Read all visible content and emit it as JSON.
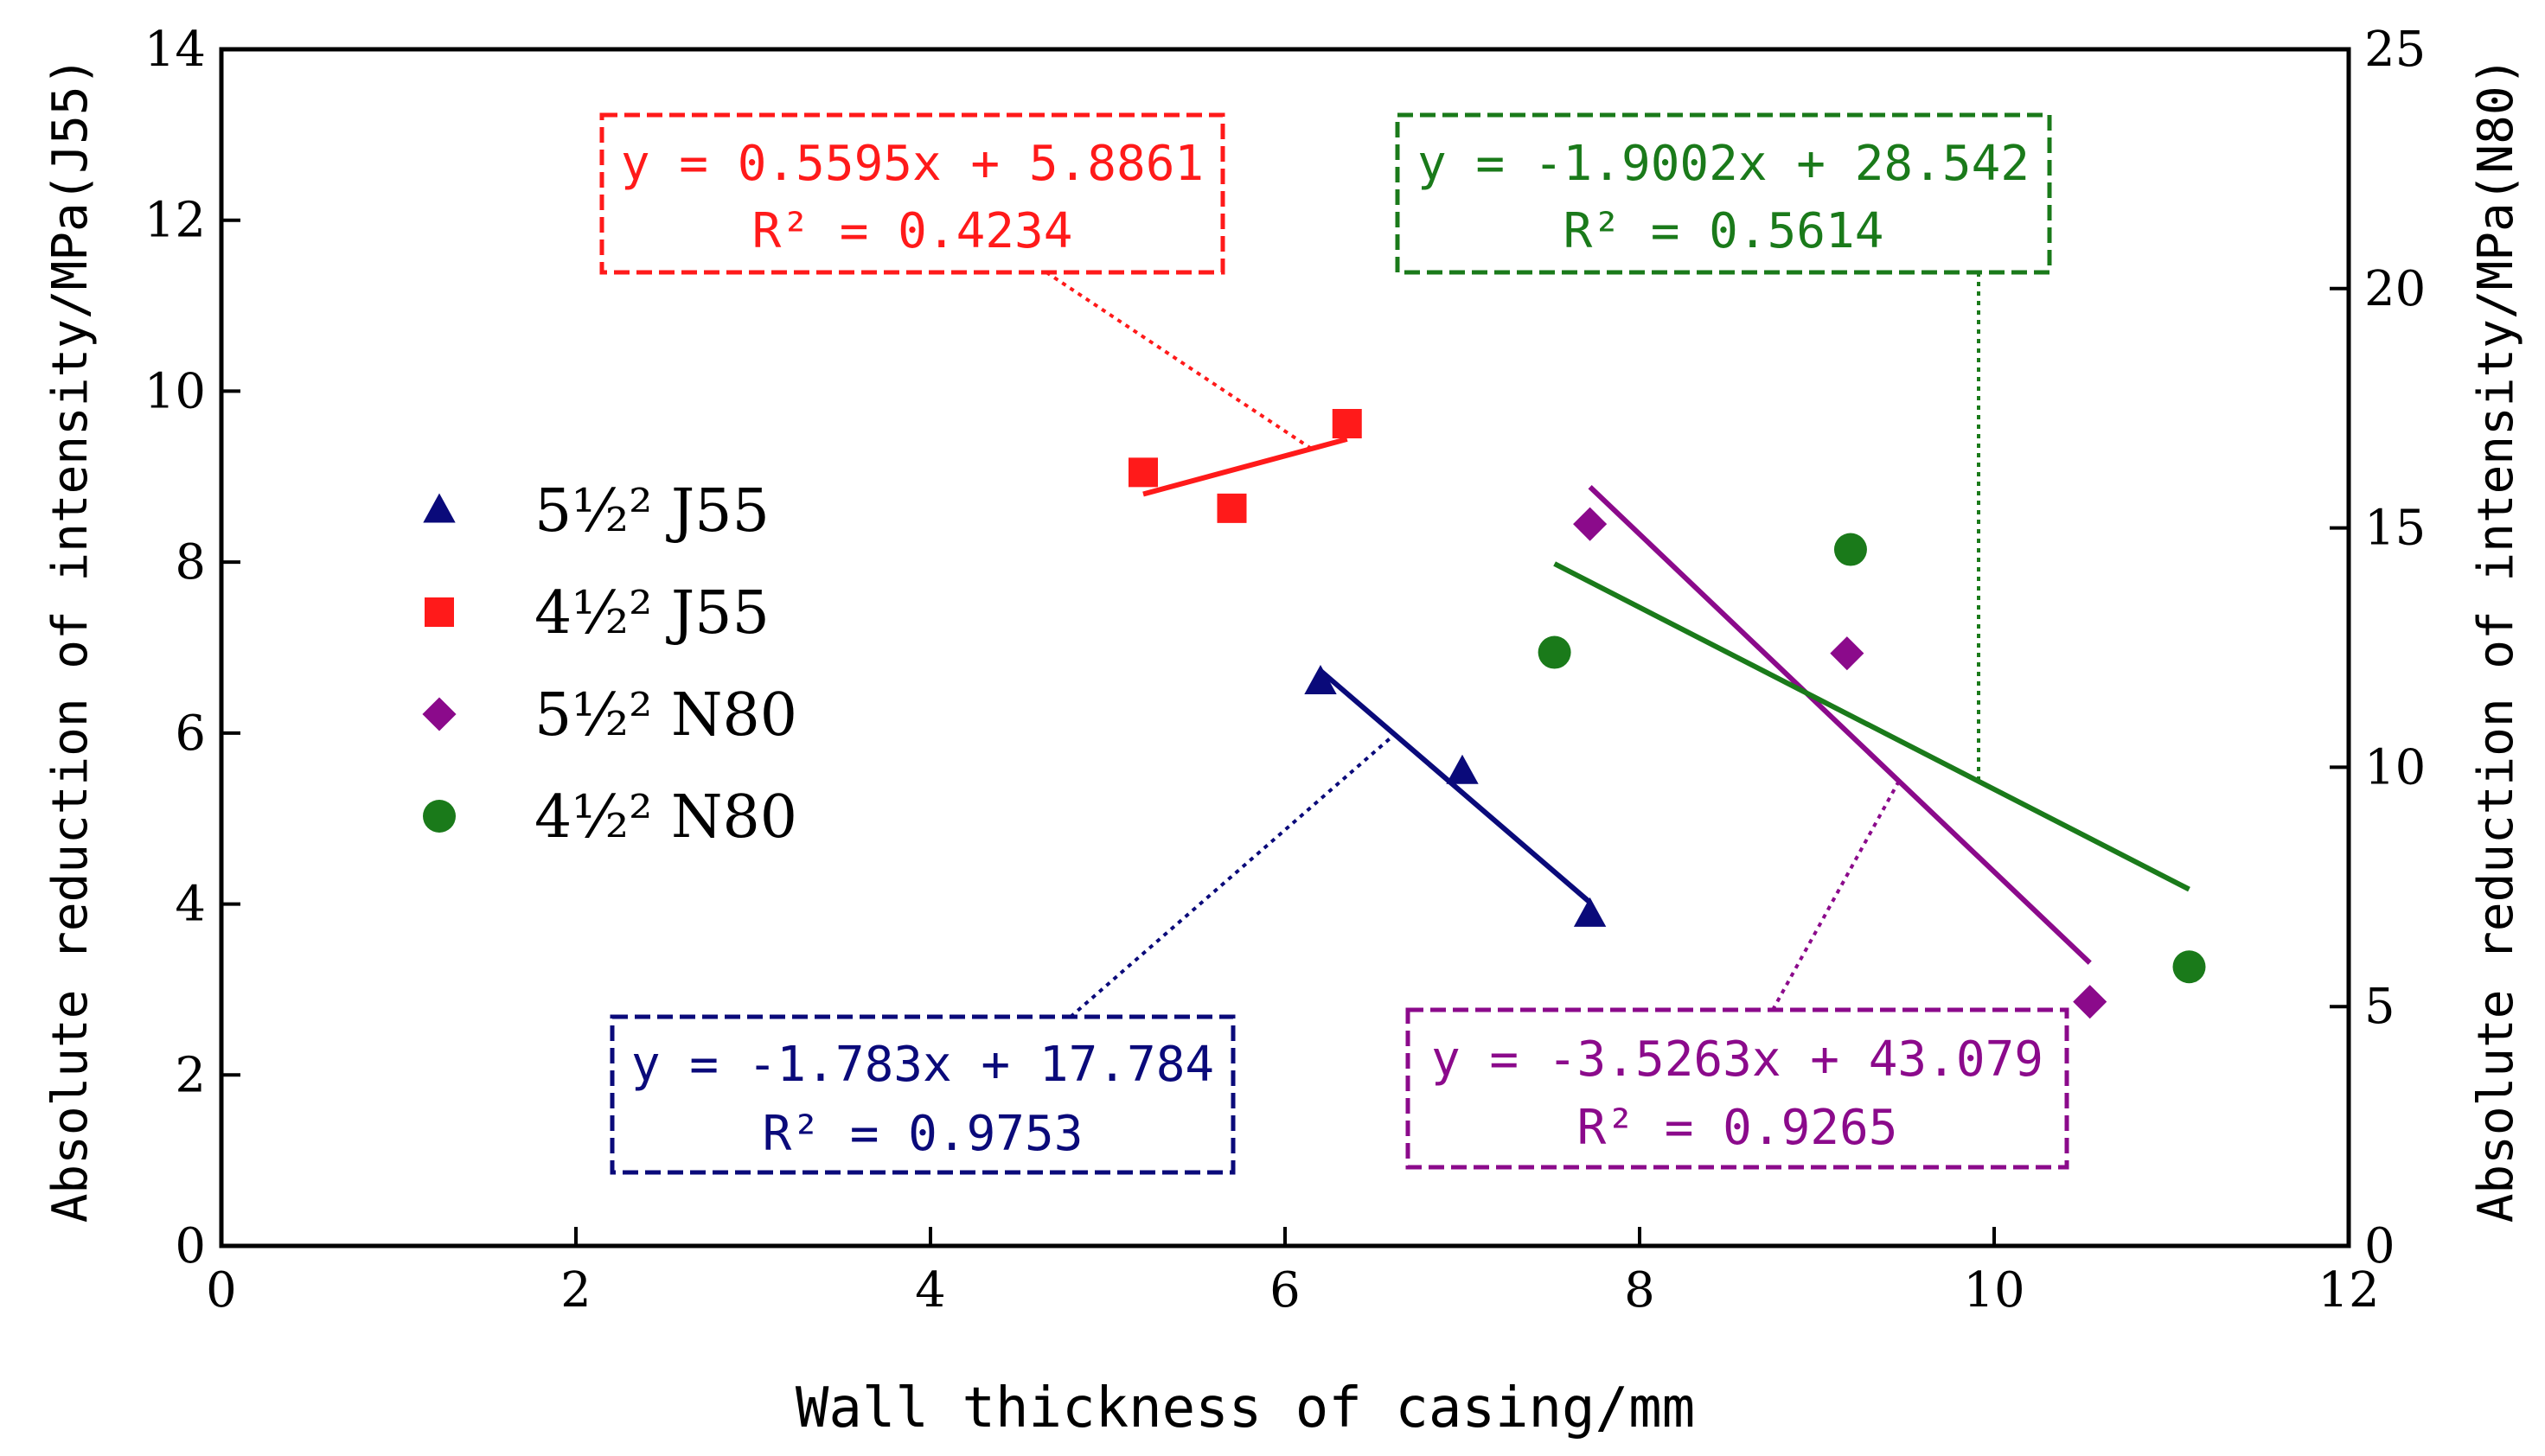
{
  "chart_data": {
    "type": "scatter",
    "xlabel": "Wall thickness of casing/mm",
    "ylabel_left": "Absolute reduction of intensity/MPa(J55)",
    "ylabel_right": "Absolute reduction of intensity/MPa(N80)",
    "xlim": [
      0,
      12
    ],
    "ylim_left": [
      0,
      14
    ],
    "ylim_right": [
      0,
      25
    ],
    "x_ticks": [
      0,
      2,
      4,
      6,
      8,
      10,
      12
    ],
    "y_left_ticks": [
      0,
      2,
      4,
      6,
      8,
      10,
      12,
      14
    ],
    "y_right_ticks": [
      0,
      5,
      10,
      15,
      20,
      25
    ],
    "grid": false,
    "legend_position": "middle-left",
    "series": [
      {
        "name": "5½² J55",
        "axis": "left",
        "marker": "triangle",
        "color": "#0a0a7a",
        "points": [
          [
            6.2,
            6.6
          ],
          [
            7.0,
            5.55
          ],
          [
            7.72,
            3.88
          ]
        ],
        "fit": {
          "slope": -1.783,
          "intercept": 17.784,
          "x_range": [
            6.2,
            7.72
          ]
        },
        "equation": "y = -1.783x + 17.784",
        "r2": "R² = 0.9753"
      },
      {
        "name": "4½² J55",
        "axis": "left",
        "marker": "square",
        "color": "#ff1a1a",
        "points": [
          [
            5.2,
            9.05
          ],
          [
            5.7,
            8.63
          ],
          [
            6.35,
            9.62
          ]
        ],
        "fit": {
          "slope": 0.5595,
          "intercept": 5.8861,
          "x_range": [
            5.2,
            6.35
          ]
        },
        "equation": "y = 0.5595x + 5.8861",
        "r2": "R² = 0.4234"
      },
      {
        "name": "5½² N80",
        "axis": "right",
        "marker": "diamond",
        "color": "#8b0a8b",
        "points": [
          [
            7.72,
            15.08
          ],
          [
            9.17,
            12.38
          ],
          [
            10.54,
            5.1
          ]
        ],
        "fit": {
          "slope": -3.5263,
          "intercept": 43.079,
          "x_range": [
            7.72,
            10.54
          ]
        },
        "equation": "y = -3.5263x + 43.079",
        "r2": "R² = 0.9265"
      },
      {
        "name": "4½² N80",
        "axis": "right",
        "marker": "circle",
        "color": "#1a7a1a",
        "points": [
          [
            7.52,
            12.4
          ],
          [
            9.19,
            14.55
          ],
          [
            11.1,
            5.83
          ]
        ],
        "fit": {
          "slope": -1.9002,
          "intercept": 28.542,
          "x_range": [
            7.52,
            11.1
          ]
        },
        "equation": "y = -1.9002x + 28.542",
        "r2": "R² = 0.5614"
      }
    ]
  }
}
